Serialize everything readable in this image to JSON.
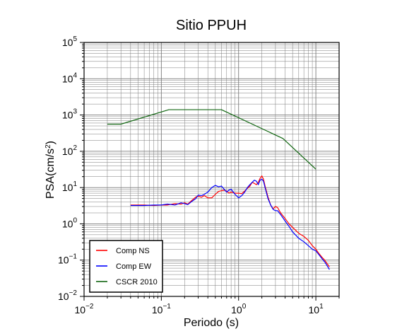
{
  "chart_data": {
    "type": "line",
    "title": "Sitio PPUH",
    "xlabel": "Periodo (s)",
    "ylabel": {
      "base": "PSA(cm/s",
      "sup": "2",
      "close": ")"
    },
    "x_scale": "log",
    "y_scale": "log",
    "xlim": [
      0.01,
      20
    ],
    "ylim": [
      0.01,
      100000
    ],
    "grid": true,
    "legend_position": "bottom-left",
    "x_ticks": [
      {
        "base": "10",
        "exp": "−2"
      },
      {
        "base": "10",
        "exp": "−1"
      },
      {
        "base": "10",
        "exp": "0"
      },
      {
        "base": "10",
        "exp": "1"
      }
    ],
    "y_ticks": [
      {
        "base": "10",
        "exp": "−2"
      },
      {
        "base": "10",
        "exp": "−1"
      },
      {
        "base": "10",
        "exp": "0"
      },
      {
        "base": "10",
        "exp": "1"
      },
      {
        "base": "10",
        "exp": "2"
      },
      {
        "base": "10",
        "exp": "3"
      },
      {
        "base": "10",
        "exp": "4"
      },
      {
        "base": "10",
        "exp": "5"
      }
    ],
    "series": [
      {
        "name": "Comp NS",
        "color": "#ff0000",
        "x": [
          0.04,
          0.06,
          0.08,
          0.1,
          0.12,
          0.15,
          0.18,
          0.2,
          0.22,
          0.25,
          0.28,
          0.3,
          0.33,
          0.36,
          0.4,
          0.45,
          0.5,
          0.55,
          0.6,
          0.65,
          0.7,
          0.75,
          0.8,
          0.9,
          1.0,
          1.1,
          1.2,
          1.3,
          1.4,
          1.5,
          1.6,
          1.7,
          1.8,
          1.9,
          2.0,
          2.1,
          2.2,
          2.4,
          2.6,
          2.8,
          3.0,
          3.2,
          3.5,
          4.0,
          4.5,
          5.0,
          6.0,
          7.0,
          8.0,
          9.0,
          10.0,
          11.0,
          12.0,
          13.0,
          14.0,
          15.0
        ],
        "y": [
          3.3,
          3.3,
          3.2,
          3.3,
          3.3,
          3.6,
          3.5,
          3.8,
          3.5,
          4.5,
          5.5,
          5.8,
          5.4,
          6.0,
          5.2,
          5.2,
          6.5,
          7.8,
          8.2,
          8.5,
          8.0,
          7.0,
          7.5,
          7.0,
          7.0,
          6.8,
          8.0,
          9.5,
          11.0,
          14.0,
          13.0,
          12.0,
          14.0,
          18.0,
          21.0,
          17.0,
          11.0,
          5.5,
          3.3,
          2.6,
          3.0,
          2.8,
          2.0,
          1.4,
          1.0,
          0.8,
          0.55,
          0.45,
          0.35,
          0.25,
          0.2,
          0.15,
          0.12,
          0.1,
          0.08,
          0.065
        ]
      },
      {
        "name": "Comp EW",
        "color": "#0000ff",
        "x": [
          0.04,
          0.06,
          0.08,
          0.1,
          0.12,
          0.15,
          0.18,
          0.2,
          0.22,
          0.25,
          0.28,
          0.3,
          0.33,
          0.36,
          0.4,
          0.45,
          0.5,
          0.55,
          0.6,
          0.65,
          0.7,
          0.75,
          0.8,
          0.9,
          1.0,
          1.1,
          1.2,
          1.3,
          1.4,
          1.5,
          1.6,
          1.7,
          1.8,
          1.9,
          2.0,
          2.1,
          2.2,
          2.4,
          2.6,
          2.8,
          3.0,
          3.2,
          3.5,
          4.0,
          4.5,
          5.0,
          6.0,
          7.0,
          8.0,
          9.0,
          10.0,
          11.0,
          12.0,
          13.0,
          14.0,
          15.0
        ],
        "y": [
          3.2,
          3.2,
          3.3,
          3.3,
          3.5,
          3.3,
          3.8,
          3.6,
          3.4,
          4.2,
          5.0,
          6.2,
          6.0,
          6.5,
          7.5,
          10.0,
          11.5,
          10.5,
          11.0,
          9.0,
          7.5,
          8.5,
          9.0,
          6.5,
          5.2,
          6.0,
          7.5,
          10.0,
          12.0,
          14.0,
          16.0,
          15.0,
          12.0,
          16.0,
          17.0,
          15.0,
          10.0,
          5.0,
          3.3,
          2.5,
          2.3,
          2.3,
          1.8,
          1.2,
          0.85,
          0.6,
          0.4,
          0.32,
          0.25,
          0.2,
          0.18,
          0.14,
          0.11,
          0.09,
          0.07,
          0.055
        ]
      },
      {
        "name": "CSCR 2010",
        "color": "#116611",
        "x": [
          0.02,
          0.03,
          0.125,
          0.6,
          3.75,
          10.0
        ],
        "y": [
          560,
          560,
          1400,
          1400,
          225,
          32
        ]
      }
    ]
  }
}
